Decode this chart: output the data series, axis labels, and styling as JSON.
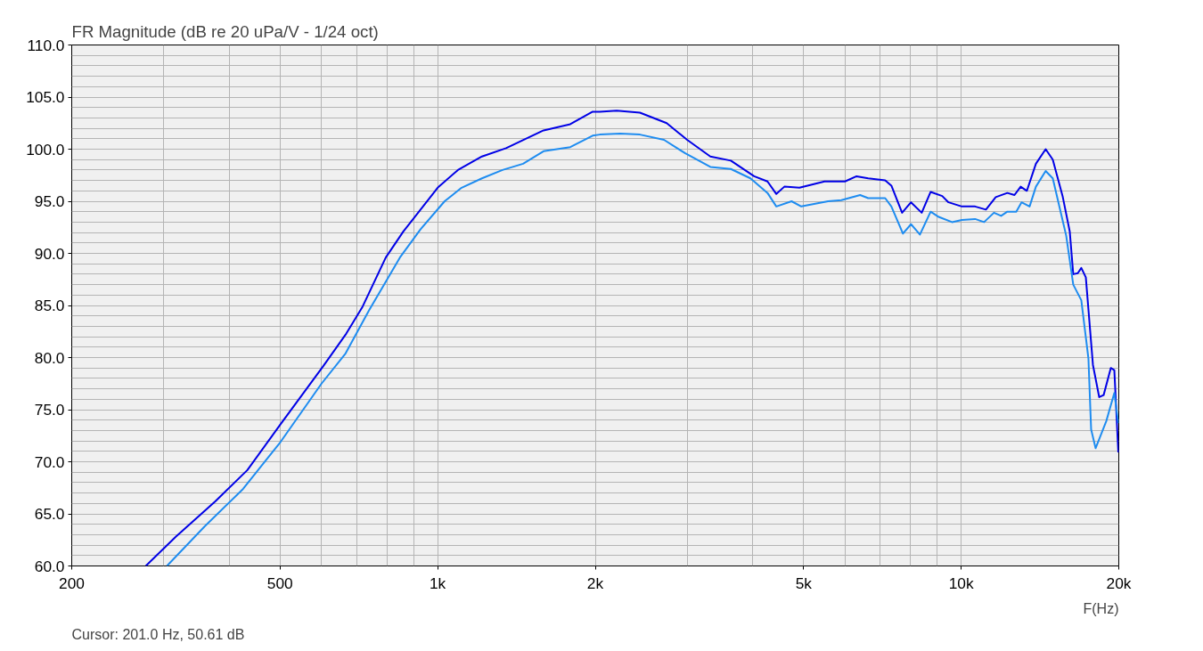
{
  "chart_data": {
    "type": "line",
    "title": "FR Magnitude (dB re 20 uPa/V - 1/24 oct)",
    "xlabel": "F(Hz)",
    "annotations": [
      "Cursor: 201.0 Hz, 50.61 dB"
    ],
    "log": "x",
    "grid": true,
    "line_style": "solid",
    "marker": "none",
    "xlim": [
      200,
      20000
    ],
    "ylim": [
      60,
      110
    ],
    "xticks": [
      200,
      {
        "value": 300,
        "label": null
      },
      {
        "value": 400,
        "label": null
      },
      500,
      {
        "value": 600,
        "label": null
      },
      {
        "value": 700,
        "label": null
      },
      {
        "value": 800,
        "label": null
      },
      {
        "value": 900,
        "label": null
      },
      {
        "value": 1000,
        "label": "1k"
      },
      {
        "value": 2000,
        "label": "2k"
      },
      {
        "value": 3000,
        "label": null
      },
      {
        "value": 4000,
        "label": null
      },
      {
        "value": 5000,
        "label": "5k"
      },
      {
        "value": 6000,
        "label": null
      },
      {
        "value": 7000,
        "label": null
      },
      {
        "value": 8000,
        "label": null
      },
      {
        "value": 9000,
        "label": null
      },
      {
        "value": 10000,
        "label": "10k"
      },
      {
        "value": 20000,
        "label": "20k"
      }
    ],
    "yticks": [
      {
        "value": 60,
        "label": "60.0"
      },
      {
        "value": 61,
        "label": null
      },
      {
        "value": 62,
        "label": null
      },
      {
        "value": 63,
        "label": null
      },
      {
        "value": 64,
        "label": null
      },
      {
        "value": 65,
        "label": "65.0"
      },
      {
        "value": 66,
        "label": null
      },
      {
        "value": 67,
        "label": null
      },
      {
        "value": 68,
        "label": null
      },
      {
        "value": 69,
        "label": null
      },
      {
        "value": 70,
        "label": "70.0"
      },
      {
        "value": 71,
        "label": null
      },
      {
        "value": 72,
        "label": null
      },
      {
        "value": 73,
        "label": null
      },
      {
        "value": 74,
        "label": null
      },
      {
        "value": 75,
        "label": "75.0"
      },
      {
        "value": 76,
        "label": null
      },
      {
        "value": 77,
        "label": null
      },
      {
        "value": 78,
        "label": null
      },
      {
        "value": 79,
        "label": null
      },
      {
        "value": 80,
        "label": "80.0"
      },
      {
        "value": 81,
        "label": null
      },
      {
        "value": 82,
        "label": null
      },
      {
        "value": 83,
        "label": null
      },
      {
        "value": 84,
        "label": null
      },
      {
        "value": 85,
        "label": "85.0"
      },
      {
        "value": 86,
        "label": null
      },
      {
        "value": 87,
        "label": null
      },
      {
        "value": 88,
        "label": null
      },
      {
        "value": 89,
        "label": null
      },
      {
        "value": 90,
        "label": "90.0"
      },
      {
        "value": 91,
        "label": null
      },
      {
        "value": 92,
        "label": null
      },
      {
        "value": 93,
        "label": null
      },
      {
        "value": 94,
        "label": null
      },
      {
        "value": 95,
        "label": "95.0"
      },
      {
        "value": 96,
        "label": null
      },
      {
        "value": 97,
        "label": null
      },
      {
        "value": 98,
        "label": null
      },
      {
        "value": 99,
        "label": null
      },
      {
        "value": 100,
        "label": "100.0"
      },
      {
        "value": 101,
        "label": null
      },
      {
        "value": 102,
        "label": null
      },
      {
        "value": 103,
        "label": null
      },
      {
        "value": 104,
        "label": null
      },
      {
        "value": 105,
        "label": "105.0"
      },
      {
        "value": 106,
        "label": null
      },
      {
        "value": 107,
        "label": null
      },
      {
        "value": 108,
        "label": null
      },
      {
        "value": 109,
        "label": null
      },
      {
        "value": 110,
        "label": "110.0"
      }
    ],
    "series": [
      {
        "color": "#0000e6",
        "x": [
          277,
          316,
          376,
          433,
          501,
          605,
          669,
          719,
          796,
          860,
          1000,
          1093,
          1215,
          1351,
          1593,
          1792,
          1977,
          2040,
          2198,
          2434,
          2738,
          2996,
          3318,
          3631,
          4022,
          4266,
          4435,
          4594,
          4910,
          5482,
          5998,
          6312,
          6643,
          7158,
          7356,
          7711,
          8020,
          8406,
          8743,
          9200,
          9456,
          10030,
          10630,
          11150,
          11640,
          12250,
          12640,
          12990,
          13350,
          13890,
          14500,
          14960,
          15620,
          16120,
          16370,
          16700,
          16960,
          17300,
          17850,
          18350,
          18710,
          19310,
          19610,
          19960
        ],
        "values": [
          60.0,
          62.8,
          66.2,
          69.2,
          73.6,
          79.2,
          82.3,
          84.9,
          89.6,
          92.1,
          96.3,
          98.0,
          99.3,
          100.1,
          101.8,
          102.4,
          103.6,
          103.6,
          103.7,
          103.5,
          102.5,
          100.9,
          99.3,
          98.9,
          97.4,
          96.9,
          95.7,
          96.4,
          96.3,
          96.9,
          96.9,
          97.4,
          97.2,
          97.0,
          96.5,
          93.9,
          94.9,
          93.9,
          95.9,
          95.5,
          94.9,
          94.5,
          94.5,
          94.2,
          95.4,
          95.8,
          95.6,
          96.4,
          96.0,
          98.6,
          100.0,
          99.0,
          95.5,
          92.1,
          88.0,
          88.1,
          88.6,
          87.7,
          79.3,
          76.2,
          76.4,
          79.0,
          78.8,
          70.9
        ]
      },
      {
        "color": "#1e8cf0",
        "x": [
          304,
          359,
          425,
          501,
          600,
          667,
          739,
          847,
          927,
          1031,
          1111,
          1215,
          1330,
          1456,
          1593,
          1792,
          1977,
          2040,
          2232,
          2434,
          2706,
          2972,
          3318,
          3631,
          3958,
          4266,
          4435,
          4742,
          4950,
          5568,
          5904,
          6412,
          6643,
          7158,
          7356,
          7740,
          8020,
          8340,
          8743,
          9056,
          9604,
          10030,
          10630,
          11060,
          11550,
          11920,
          12250,
          12740,
          13040,
          13510,
          13890,
          14500,
          14960,
          15870,
          16370,
          16960,
          17500,
          17710,
          18060,
          18930,
          19610,
          19960
        ],
        "values": [
          60.0,
          63.8,
          67.4,
          71.9,
          77.5,
          80.4,
          84.5,
          89.6,
          92.3,
          95.0,
          96.3,
          97.2,
          98.0,
          98.6,
          99.8,
          100.2,
          101.3,
          101.4,
          101.5,
          101.4,
          100.9,
          99.6,
          98.3,
          98.1,
          97.2,
          95.8,
          94.5,
          95.0,
          94.5,
          95.0,
          95.1,
          95.6,
          95.3,
          95.3,
          94.5,
          91.9,
          92.8,
          91.8,
          94.0,
          93.5,
          93.0,
          93.2,
          93.3,
          93.0,
          93.9,
          93.6,
          94.0,
          94.0,
          94.9,
          94.5,
          96.4,
          97.9,
          97.2,
          91.7,
          87.0,
          85.5,
          79.9,
          73.1,
          71.3,
          73.9,
          76.6,
          73.7
        ]
      }
    ]
  }
}
